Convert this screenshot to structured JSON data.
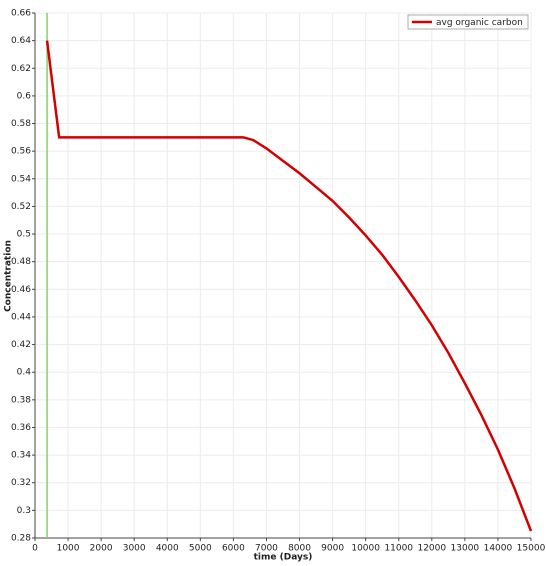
{
  "chart_data": {
    "type": "line",
    "xlabel": "time (Days)",
    "ylabel": "Concentration",
    "x": [
      365,
      730,
      1000,
      2000,
      3000,
      4000,
      5000,
      6000,
      6300,
      6600,
      7000,
      7500,
      8000,
      8500,
      9000,
      9500,
      10000,
      10500,
      11000,
      11500,
      12000,
      12500,
      13000,
      13500,
      14000,
      14500,
      15000
    ],
    "series": [
      {
        "name": "avg organic carbon",
        "color": "#d40000",
        "values": [
          0.64,
          0.57,
          0.57,
          0.57,
          0.57,
          0.57,
          0.57,
          0.57,
          0.57,
          0.568,
          0.562,
          0.553,
          0.544,
          0.534,
          0.524,
          0.512,
          0.499,
          0.485,
          0.469,
          0.452,
          0.434,
          0.414,
          0.392,
          0.369,
          0.344,
          0.316,
          0.285
        ]
      }
    ],
    "vline_x": 365,
    "vline_color": "#7ed36b",
    "xlim": [
      0,
      15000
    ],
    "xticks": [
      0,
      1000,
      2000,
      3000,
      4000,
      5000,
      6000,
      7000,
      8000,
      9000,
      10000,
      11000,
      12000,
      13000,
      14000,
      15000
    ],
    "ylim": [
      0.28,
      0.66
    ],
    "yticks": [
      0.28,
      0.3,
      0.32,
      0.34,
      0.36,
      0.38,
      0.4,
      0.42,
      0.44,
      0.46,
      0.48,
      0.5,
      0.52,
      0.54,
      0.56,
      0.58,
      0.6,
      0.62,
      0.64,
      0.66
    ],
    "grid": true,
    "legend": "top-right"
  }
}
